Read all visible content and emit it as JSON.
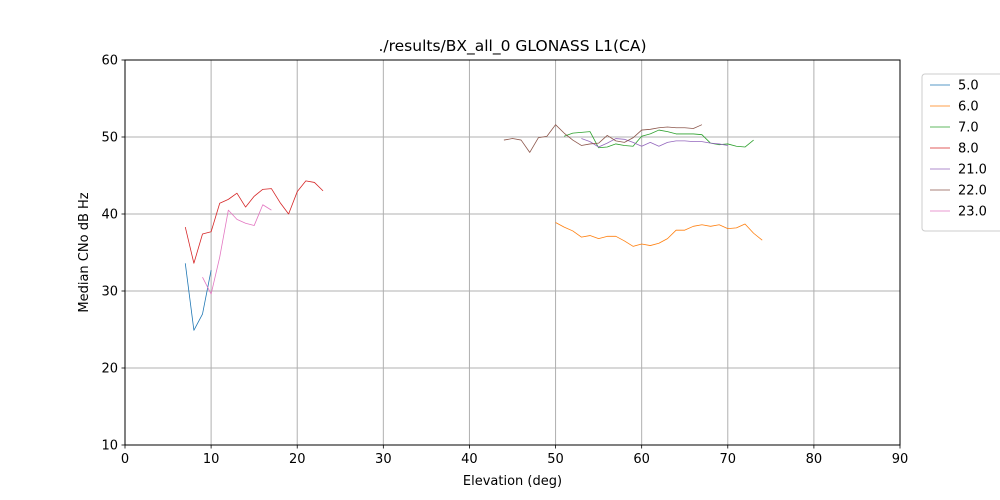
{
  "chart_data": {
    "type": "line",
    "title": "./results/BX_all_0 GLONASS L1(CA)",
    "xlabel": "Elevation (deg)",
    "ylabel": "Median CNo dB Hz",
    "xlim": [
      0,
      90
    ],
    "ylim": [
      10,
      60
    ],
    "xticks": [
      "0",
      "10",
      "20",
      "30",
      "40",
      "50",
      "60",
      "70",
      "80",
      "90"
    ],
    "yticks": [
      "10",
      "20",
      "30",
      "40",
      "50",
      "60"
    ],
    "grid": true,
    "legend_position": "outside-right-top",
    "series": [
      {
        "name": "5.0",
        "color": "#1f77b4",
        "x": [
          7,
          8,
          9,
          10
        ],
        "y": [
          33.6,
          24.9,
          27.0,
          32.7
        ]
      },
      {
        "name": "6.0",
        "color": "#ff7f0e",
        "x": [
          50,
          51,
          52,
          53,
          54,
          55,
          56,
          57,
          58,
          59,
          60,
          61,
          62,
          63,
          64,
          65,
          66,
          67,
          68,
          69,
          70,
          71,
          72,
          73,
          74
        ],
        "y": [
          38.9,
          38.3,
          37.8,
          37.0,
          37.2,
          36.8,
          37.1,
          37.1,
          36.5,
          35.8,
          36.1,
          35.9,
          36.2,
          36.8,
          37.9,
          37.9,
          38.4,
          38.6,
          38.4,
          38.6,
          38.1,
          38.2,
          38.7,
          37.5,
          36.6
        ]
      },
      {
        "name": "7.0",
        "color": "#2ca02c",
        "x": [
          51,
          52,
          53,
          54,
          55,
          56,
          57,
          58,
          59,
          60,
          61,
          62,
          63,
          64,
          65,
          66,
          67,
          68,
          69,
          70,
          71,
          72,
          73
        ],
        "y": [
          50.1,
          50.5,
          50.6,
          50.7,
          48.6,
          48.7,
          49.1,
          48.9,
          48.8,
          50.1,
          50.4,
          50.9,
          50.7,
          50.4,
          50.4,
          50.4,
          50.3,
          49.2,
          49.0,
          49.1,
          48.8,
          48.7,
          49.6
        ]
      },
      {
        "name": "8.0",
        "color": "#d62728",
        "x": [
          7,
          8,
          9,
          10,
          11,
          12,
          13,
          14,
          15,
          16,
          17,
          18,
          19,
          20,
          21,
          22,
          23
        ],
        "y": [
          38.3,
          33.6,
          37.4,
          37.7,
          41.4,
          41.9,
          42.7,
          40.9,
          42.3,
          43.2,
          43.3,
          41.5,
          40.0,
          42.9,
          44.3,
          44.1,
          43.0
        ]
      },
      {
        "name": "21.0",
        "color": "#9467bd",
        "x": [
          53,
          54,
          55,
          56,
          57,
          58,
          59,
          60,
          61,
          62,
          63,
          64,
          65,
          66,
          67,
          68,
          69,
          70
        ],
        "y": [
          49.8,
          49.4,
          48.7,
          49.2,
          49.8,
          49.7,
          49.3,
          48.8,
          49.3,
          48.8,
          49.3,
          49.5,
          49.5,
          49.4,
          49.4,
          49.2,
          49.1,
          48.9
        ]
      },
      {
        "name": "22.0",
        "color": "#8c564b",
        "x": [
          44,
          45,
          46,
          47,
          48,
          49,
          50,
          51,
          52,
          53,
          54,
          55,
          56,
          57,
          58,
          59,
          60,
          61,
          62,
          63,
          64,
          65,
          66,
          67
        ],
        "y": [
          49.6,
          49.8,
          49.6,
          48.0,
          49.9,
          50.1,
          51.6,
          50.5,
          49.6,
          48.9,
          49.1,
          49.2,
          50.2,
          49.5,
          49.3,
          49.9,
          50.9,
          51.0,
          51.2,
          51.3,
          51.2,
          51.2,
          51.1,
          51.6
        ]
      },
      {
        "name": "23.0",
        "color": "#e377c2",
        "x": [
          9,
          10,
          11,
          12,
          13,
          14,
          15,
          16,
          17
        ],
        "y": [
          31.8,
          29.6,
          34.4,
          40.5,
          39.3,
          38.8,
          38.5,
          41.2,
          40.5
        ]
      }
    ]
  }
}
